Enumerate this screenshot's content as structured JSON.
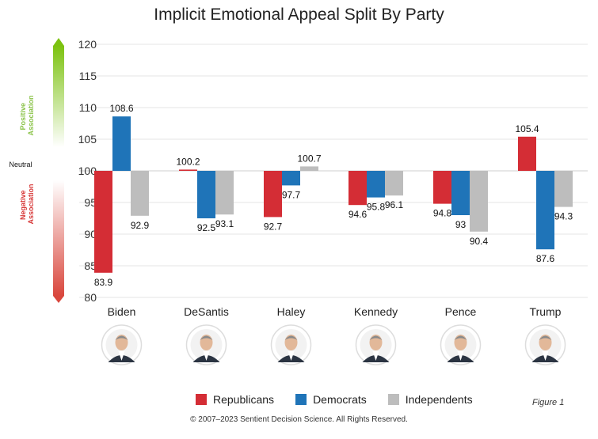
{
  "chart_data": {
    "type": "bar",
    "title": "Implicit Emotional Appeal Split By Party",
    "categories": [
      "Biden",
      "DeSantis",
      "Haley",
      "Kennedy",
      "Pence",
      "Trump"
    ],
    "baseline": 100,
    "ylim": [
      80,
      120
    ],
    "yticks": [
      80,
      85,
      90,
      95,
      100,
      105,
      110,
      115,
      120
    ],
    "grid": true,
    "legend_position": "bottom",
    "series": [
      {
        "name": "Republicans",
        "color": "#d42d35",
        "values": [
          83.9,
          100.2,
          92.7,
          94.6,
          94.8,
          105.4
        ]
      },
      {
        "name": "Democrats",
        "color": "#1f74b8",
        "values": [
          108.6,
          92.5,
          97.7,
          95.8,
          93,
          87.6
        ]
      },
      {
        "name": "Independents",
        "color": "#bdbdbd",
        "values": [
          92.9,
          93.1,
          100.7,
          96.1,
          90.4,
          94.3
        ]
      }
    ],
    "value_labels": [
      [
        "83.9",
        "100.2",
        "92.7",
        "94.6",
        "94.8",
        "105.4"
      ],
      [
        "108.6",
        "92.5",
        "97.7",
        "95.8",
        "93",
        "87.6"
      ],
      [
        "92.9",
        "93.1",
        "100.7",
        "96.1",
        "90.4",
        "94.3"
      ]
    ]
  },
  "side_axis": {
    "positive": [
      "Positive",
      "Association"
    ],
    "neutral": "Neutral",
    "negative": [
      "Negative",
      "Association"
    ],
    "positive_color": "#8bc34a",
    "negative_color": "#d73838"
  },
  "portrait_icons": [
    "biden-portrait-icon",
    "desantis-portrait-icon",
    "haley-portrait-icon",
    "kennedy-portrait-icon",
    "pence-portrait-icon",
    "trump-portrait-icon"
  ],
  "footer": {
    "figure": "Figure 1",
    "copyright": "© 2007–2023 Sentient Decision Science. All Rights Reserved."
  }
}
